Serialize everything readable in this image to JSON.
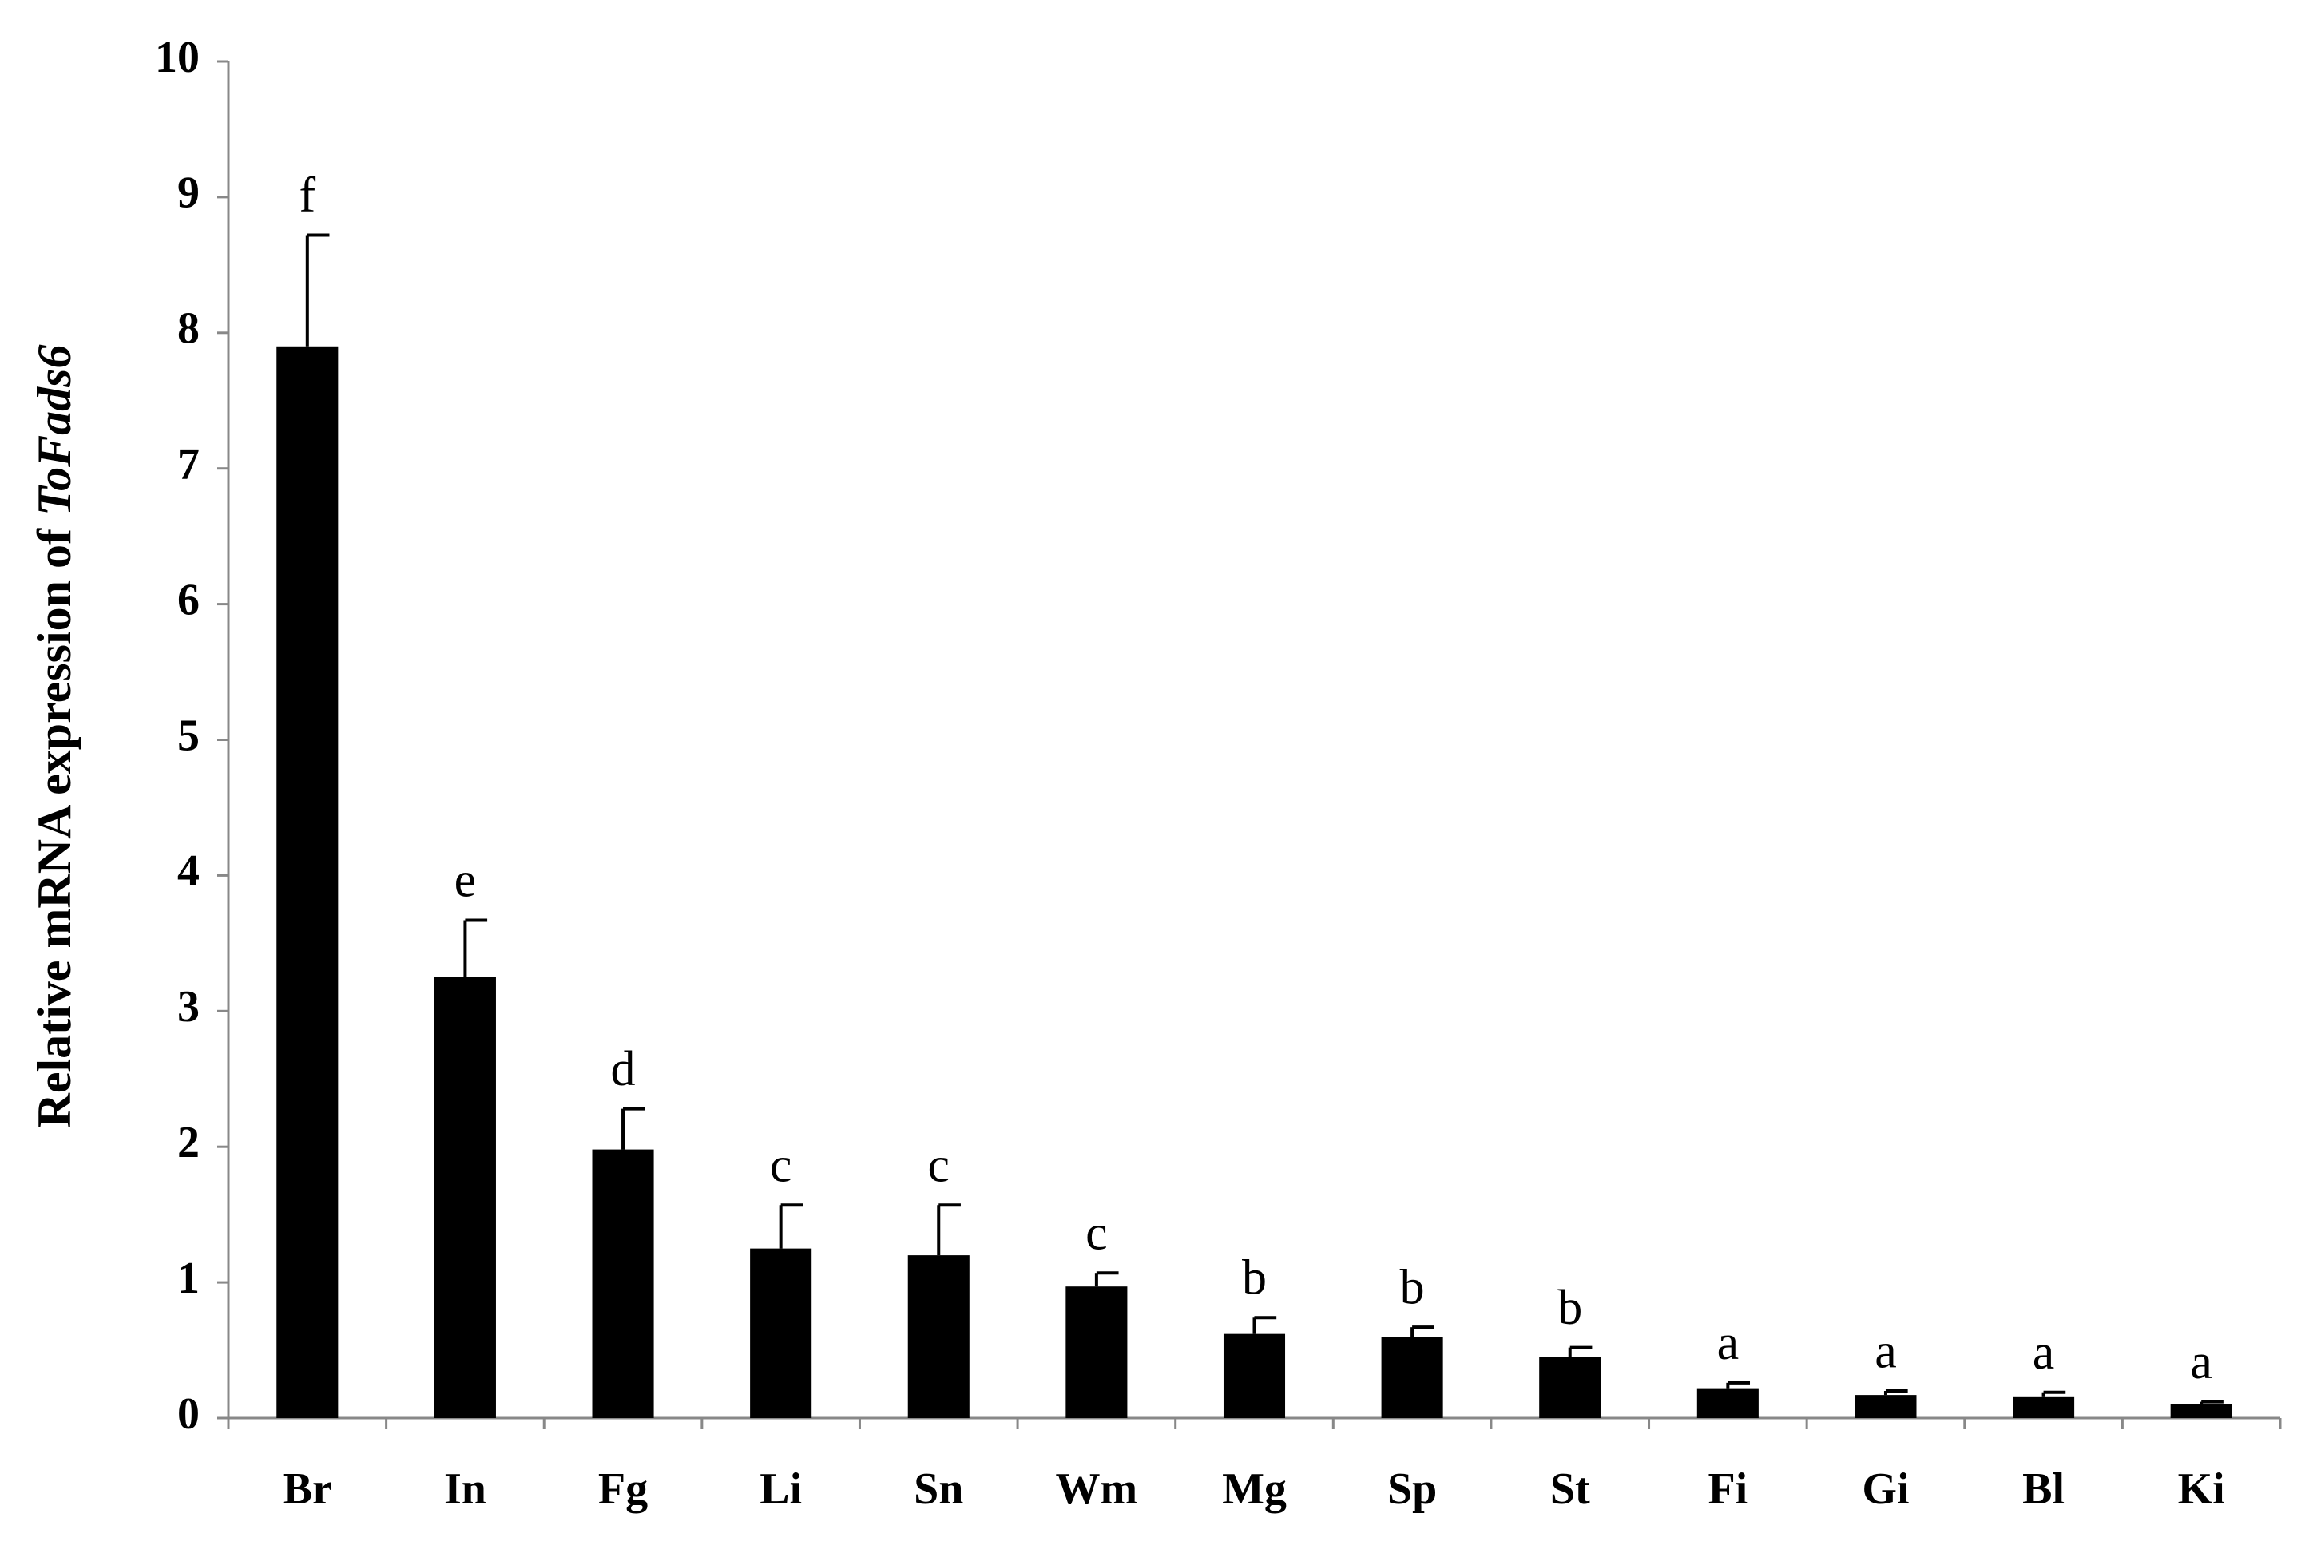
{
  "chart_data": {
    "type": "bar",
    "y_label": {
      "text": "Relative mRNA expression of",
      "gene": "ToFads6"
    },
    "categories": [
      "Br",
      "In",
      "Fg",
      "Li",
      "Sn",
      "Wm",
      "Mg",
      "Sp",
      "St",
      "Fi",
      "Gi",
      "Bl",
      "Ki"
    ],
    "values": [
      7.9,
      3.25,
      1.98,
      1.25,
      1.2,
      0.97,
      0.62,
      0.6,
      0.45,
      0.22,
      0.17,
      0.16,
      0.1
    ],
    "errors": [
      0.82,
      0.42,
      0.3,
      0.32,
      0.37,
      0.1,
      0.12,
      0.07,
      0.07,
      0.04,
      0.03,
      0.03,
      0.02
    ],
    "annotations": [
      "f",
      "e",
      "d",
      "c",
      "c",
      "c",
      "b",
      "b",
      "b",
      "a",
      "a",
      "a",
      "a"
    ],
    "color": "#000000",
    "ylim": [
      0,
      10
    ],
    "yticks": [
      0,
      1,
      2,
      3,
      4,
      5,
      6,
      7,
      8,
      9,
      10
    ],
    "grid": false
  }
}
